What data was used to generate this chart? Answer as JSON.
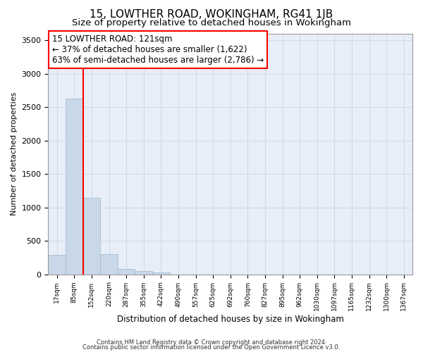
{
  "title": "15, LOWTHER ROAD, WOKINGHAM, RG41 1JB",
  "subtitle": "Size of property relative to detached houses in Wokingham",
  "xlabel": "Distribution of detached houses by size in Wokingham",
  "ylabel": "Number of detached properties",
  "bin_labels": [
    "17sqm",
    "85sqm",
    "152sqm",
    "220sqm",
    "287sqm",
    "355sqm",
    "422sqm",
    "490sqm",
    "557sqm",
    "625sqm",
    "692sqm",
    "760sqm",
    "827sqm",
    "895sqm",
    "962sqm",
    "1030sqm",
    "1097sqm",
    "1165sqm",
    "1232sqm",
    "1300sqm",
    "1367sqm"
  ],
  "bar_heights": [
    290,
    2630,
    1140,
    300,
    85,
    45,
    30,
    0,
    0,
    0,
    0,
    0,
    0,
    0,
    0,
    0,
    0,
    0,
    0,
    0,
    0
  ],
  "bar_color": "#c8d8e8",
  "bar_edge_color": "#a8bece",
  "annotation_line1": "15 LOWTHER ROAD: 121sqm",
  "annotation_line2": "← 37% of detached houses are smaller (1,622)",
  "annotation_line3": "63% of semi-detached houses are larger (2,786) →",
  "ylim": [
    0,
    3600
  ],
  "yticks": [
    0,
    500,
    1000,
    1500,
    2000,
    2500,
    3000,
    3500
  ],
  "footnote1": "Contains HM Land Registry data © Crown copyright and database right 2024.",
  "footnote2": "Contains public sector information licensed under the Open Government Licence v3.0.",
  "bg_color": "#ffffff",
  "plot_bg_color": "#e8eef8",
  "grid_color": "#c5cfe0",
  "title_fontsize": 11,
  "subtitle_fontsize": 9.5,
  "annotation_fontsize": 8.5,
  "red_line_x": 1.5
}
